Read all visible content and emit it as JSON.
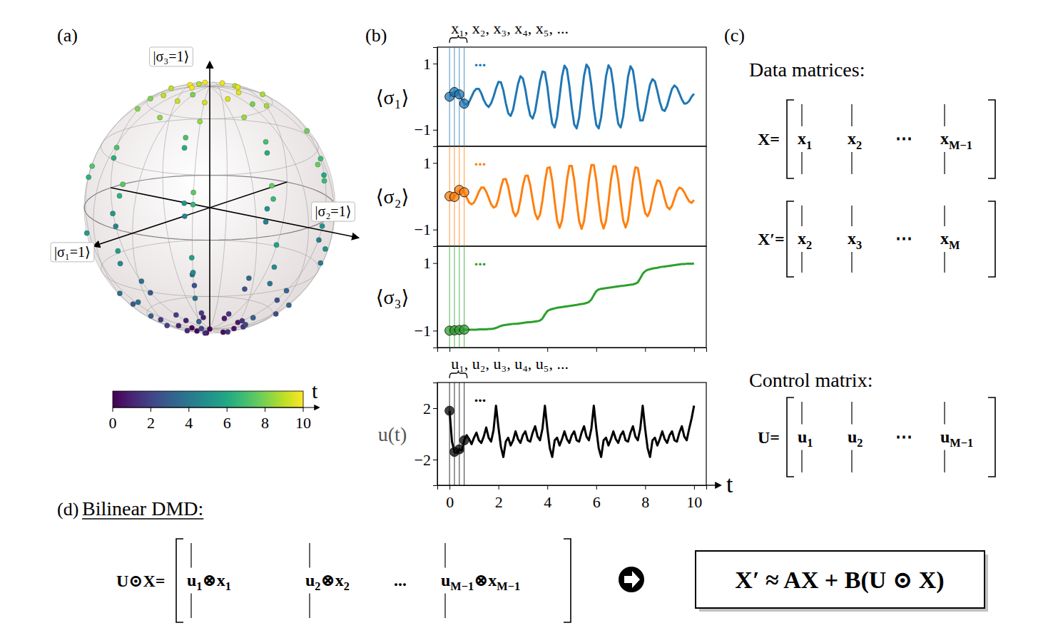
{
  "chart_data": [
    {
      "type": "bloch_sphere",
      "panel": "(a)",
      "axis_labels": [
        "|σ₁=1⟩",
        "|σ₂=1⟩",
        "|σ₃=1⟩"
      ],
      "colorbar": {
        "label": "t",
        "range": [
          0,
          10
        ],
        "ticks": [
          0,
          2,
          4,
          6,
          8,
          10
        ]
      }
    },
    {
      "type": "line",
      "panel": "(b)",
      "x": [
        0,
        0.1,
        0.2,
        0.3,
        0.4,
        0.5,
        0.6,
        0.7,
        0.8,
        0.9,
        1,
        1.1,
        1.2,
        1.3,
        1.4,
        1.5,
        1.6,
        1.7,
        1.8,
        1.9,
        2,
        2.1,
        2.2,
        2.3,
        2.4,
        2.5,
        2.6,
        2.7,
        2.8,
        2.9,
        3,
        3.1,
        3.2,
        3.3,
        3.4,
        3.5,
        3.6,
        3.7,
        3.8,
        3.9,
        4,
        4.1,
        4.2,
        4.3,
        4.4,
        4.5,
        4.6,
        4.7,
        4.8,
        4.9,
        5,
        5.1,
        5.2,
        5.3,
        5.4,
        5.5,
        5.6,
        5.7,
        5.8,
        5.9,
        6,
        6.1,
        6.2,
        6.3,
        6.4,
        6.5,
        6.6,
        6.7,
        6.8,
        6.9,
        7,
        7.1,
        7.2,
        7.3,
        7.4,
        7.5,
        7.6,
        7.7,
        7.8,
        7.9,
        8,
        8.1,
        8.2,
        8.3,
        8.4,
        8.5,
        8.6,
        8.7,
        8.8,
        8.9,
        9,
        9.1,
        9.2,
        9.3,
        9.4,
        9.5,
        9.6,
        9.7,
        9.8,
        9.9,
        10
      ],
      "xlim": [
        -0.5,
        10.5
      ],
      "xticks": [
        0,
        2,
        4,
        6,
        8,
        10
      ],
      "x_label": "t",
      "samples_x": [
        0,
        0.2,
        0.4,
        0.6
      ],
      "sample_headers": {
        "states": "x₁, x₂, x₃, x₄, x₅, ...",
        "controls": "u₁, u₂, u₃, u₄, u₅, ..."
      },
      "more_label": "...",
      "series": [
        {
          "name": "⟨σ₁⟩",
          "color": "#1f77b4",
          "ylim": [
            -1.5,
            1.5
          ],
          "yticks": [
            {
              "value": -1,
              "label": "−1"
            },
            1
          ],
          "values": [
            0,
            0.09,
            0.14,
            0.17,
            0.07,
            -0.07,
            -0.21,
            -0.24,
            -0.16,
            0,
            0.16,
            0.24,
            0.24,
            0.1,
            -0.1,
            -0.24,
            -0.31,
            -0.2,
            0,
            0.25,
            0.45,
            0.44,
            0.19,
            -0.19,
            -0.5,
            -0.58,
            -0.39,
            0,
            0.39,
            0.62,
            0.55,
            0.22,
            -0.23,
            -0.57,
            -0.66,
            -0.44,
            0,
            0.46,
            0.76,
            0.74,
            0.31,
            -0.32,
            -0.81,
            -0.93,
            -0.61,
            0,
            0.61,
            0.94,
            0.83,
            0.33,
            -0.33,
            -0.84,
            -0.96,
            -0.63,
            0,
            0.63,
            0.97,
            0.86,
            0.34,
            -0.34,
            -0.85,
            -0.96,
            -0.62,
            0,
            0.62,
            0.95,
            0.83,
            0.33,
            -0.33,
            -0.82,
            -0.93,
            -0.61,
            0,
            0.6,
            0.92,
            0.8,
            0.31,
            -0.31,
            -0.72,
            -0.72,
            -0.42,
            0,
            0.37,
            0.53,
            0.46,
            0.17,
            -0.16,
            -0.39,
            -0.43,
            -0.27,
            0,
            0.24,
            0.34,
            0.27,
            0.1,
            -0.08,
            -0.21,
            -0.2,
            -0.13,
            0,
            0.09
          ]
        },
        {
          "name": "⟨σ₂⟩",
          "color": "#ff7f0e",
          "ylim": [
            -1.5,
            1.5
          ],
          "yticks": [
            {
              "value": -1,
              "label": "−1"
            },
            1
          ],
          "values": [
            0,
            -0.11,
            -0.02,
            0.1,
            0.19,
            0.19,
            0.12,
            -0.04,
            -0.19,
            -0.24,
            -0.19,
            -0.04,
            0.14,
            0.26,
            0.26,
            0.14,
            -0.05,
            -0.24,
            -0.34,
            -0.3,
            -0.08,
            0.26,
            0.51,
            0.52,
            0.29,
            -0.1,
            -0.46,
            -0.6,
            -0.47,
            -0.11,
            0.32,
            0.61,
            0.62,
            0.33,
            -0.12,
            -0.52,
            -0.69,
            -0.55,
            -0.13,
            0.43,
            0.85,
            0.87,
            0.47,
            -0.16,
            -0.73,
            -0.95,
            -0.73,
            -0.17,
            0.48,
            0.91,
            0.91,
            0.48,
            -0.17,
            -0.75,
            -0.98,
            -0.75,
            -0.17,
            0.49,
            0.94,
            0.94,
            0.49,
            -0.17,
            -0.74,
            -0.97,
            -0.74,
            -0.17,
            0.48,
            0.9,
            0.9,
            0.48,
            -0.16,
            -0.72,
            -0.94,
            -0.72,
            -0.16,
            0.46,
            0.87,
            0.85,
            0.42,
            -0.13,
            -0.5,
            -0.6,
            -0.44,
            -0.09,
            0.26,
            0.48,
            0.45,
            0.23,
            -0.08,
            -0.32,
            -0.39,
            -0.28,
            -0.06,
            0.16,
            0.26,
            0.23,
            0.12,
            -0.03,
            -0.15,
            -0.2,
            -0.11
          ]
        },
        {
          "name": "⟨σ₃⟩",
          "color": "#2ca02c",
          "ylim": [
            -1.5,
            1.5
          ],
          "yticks": [
            {
              "value": -1,
              "label": "−1"
            },
            1
          ],
          "values": [
            -1,
            -0.99,
            -0.99,
            -0.98,
            -0.98,
            -0.98,
            -0.97,
            -0.97,
            -0.97,
            -0.97,
            -0.97,
            -0.97,
            -0.96,
            -0.96,
            -0.96,
            -0.96,
            -0.95,
            -0.95,
            -0.94,
            -0.92,
            -0.89,
            -0.86,
            -0.84,
            -0.83,
            -0.82,
            -0.81,
            -0.8,
            -0.8,
            -0.79,
            -0.78,
            -0.77,
            -0.76,
            -0.75,
            -0.75,
            -0.74,
            -0.73,
            -0.72,
            -0.7,
            -0.64,
            -0.52,
            -0.42,
            -0.38,
            -0.36,
            -0.34,
            -0.32,
            -0.31,
            -0.3,
            -0.29,
            -0.28,
            -0.27,
            -0.26,
            -0.25,
            -0.24,
            -0.22,
            -0.21,
            -0.2,
            -0.18,
            -0.15,
            -0.08,
            0.05,
            0.17,
            0.22,
            0.24,
            0.25,
            0.26,
            0.27,
            0.28,
            0.29,
            0.3,
            0.31,
            0.32,
            0.33,
            0.34,
            0.35,
            0.36,
            0.37,
            0.39,
            0.43,
            0.55,
            0.68,
            0.76,
            0.8,
            0.82,
            0.84,
            0.85,
            0.86,
            0.88,
            0.89,
            0.9,
            0.91,
            0.92,
            0.93,
            0.94,
            0.95,
            0.96,
            0.97,
            0.97,
            0.98,
            0.98,
            0.98,
            0.99
          ]
        },
        {
          "name": "u(t)",
          "color": "#000000",
          "ylim": [
            -4,
            4
          ],
          "yticks": [
            {
              "value": -2,
              "label": "−2"
            },
            2
          ],
          "values": [
            1.8,
            -0.6,
            -1.4,
            -1.5,
            -1.2,
            -1.3,
            -0.5,
            -0.1,
            -0.4,
            -0.8,
            -0.3,
            0.1,
            -0.5,
            -0.7,
            -0.2,
            0.5,
            -0.3,
            -0.6,
            0.3,
            2.2,
            0.5,
            -1,
            -1.8,
            -0.6,
            -0.3,
            -0.9,
            -0.5,
            0.2,
            -0.4,
            -0.7,
            -0.1,
            0.2,
            -0.5,
            -0.6,
            0.1,
            0.6,
            -0.2,
            -0.5,
            0.4,
            2.2,
            0.4,
            -1.1,
            -1.8,
            -0.5,
            -0.3,
            -0.9,
            -0.4,
            0.2,
            -0.4,
            -0.7,
            -0.1,
            0.2,
            -0.5,
            -0.6,
            0.1,
            0.6,
            -0.2,
            -0.5,
            0.4,
            2.2,
            0.4,
            -1.1,
            -1.8,
            -0.5,
            -0.3,
            -0.9,
            -0.4,
            0.2,
            -0.4,
            -0.7,
            -0.1,
            0.2,
            -0.5,
            -0.6,
            0.1,
            0.6,
            -0.2,
            -0.5,
            0.4,
            2.2,
            0.4,
            -1.1,
            -1.8,
            -0.5,
            -0.3,
            -0.9,
            -0.4,
            0.2,
            -0.4,
            -0.7,
            -0.1,
            0.2,
            -0.5,
            -0.6,
            0.1,
            0.6,
            -0.2,
            -0.5,
            0.4,
            1.2,
            2.2
          ]
        }
      ]
    }
  ],
  "diagram": {
    "matrices": {
      "panel": "(c)",
      "data_heading": "Data matrices:",
      "control_heading": "Control matrix:",
      "items": [
        {
          "label": "X=",
          "columns": [
            [
              {
                "t": "x"
              },
              {
                "sub": "1"
              }
            ],
            [
              {
                "t": "x"
              },
              {
                "sub": "2"
              }
            ],
            [
              {
                "t": "⋯"
              }
            ],
            [
              {
                "t": "x"
              },
              {
                "sub": "M−1"
              }
            ]
          ]
        },
        {
          "label": "X′=",
          "columns": [
            [
              {
                "t": "x"
              },
              {
                "sub": "2"
              }
            ],
            [
              {
                "t": "x"
              },
              {
                "sub": "3"
              }
            ],
            [
              {
                "t": "⋯"
              }
            ],
            [
              {
                "t": "x"
              },
              {
                "sub": "M"
              }
            ]
          ]
        },
        {
          "label": "U=",
          "columns": [
            [
              {
                "t": "u"
              },
              {
                "sub": "1"
              }
            ],
            [
              {
                "t": "u"
              },
              {
                "sub": "2"
              }
            ],
            [
              {
                "t": "⋯"
              }
            ],
            [
              {
                "t": "u"
              },
              {
                "sub": "M−1"
              }
            ]
          ]
        }
      ]
    },
    "bilinear": {
      "panel": "(d)",
      "title": "Bilinear DMD:",
      "label": "U⊙X=",
      "columns": [
        [
          {
            "t": "u"
          },
          {
            "sub": "1"
          },
          {
            "t": "⊗x"
          },
          {
            "sub": "1"
          }
        ],
        [
          {
            "t": "u"
          },
          {
            "sub": "2"
          },
          {
            "t": "⊗x"
          },
          {
            "sub": "2"
          }
        ],
        [
          {
            "t": "..."
          }
        ],
        [
          {
            "t": "u"
          },
          {
            "sub": "M−1"
          },
          {
            "t": "⊗x"
          },
          {
            "sub": "M−1"
          }
        ]
      ],
      "equation": "X′ ≈ AX + B(U ⊙ X)"
    }
  }
}
